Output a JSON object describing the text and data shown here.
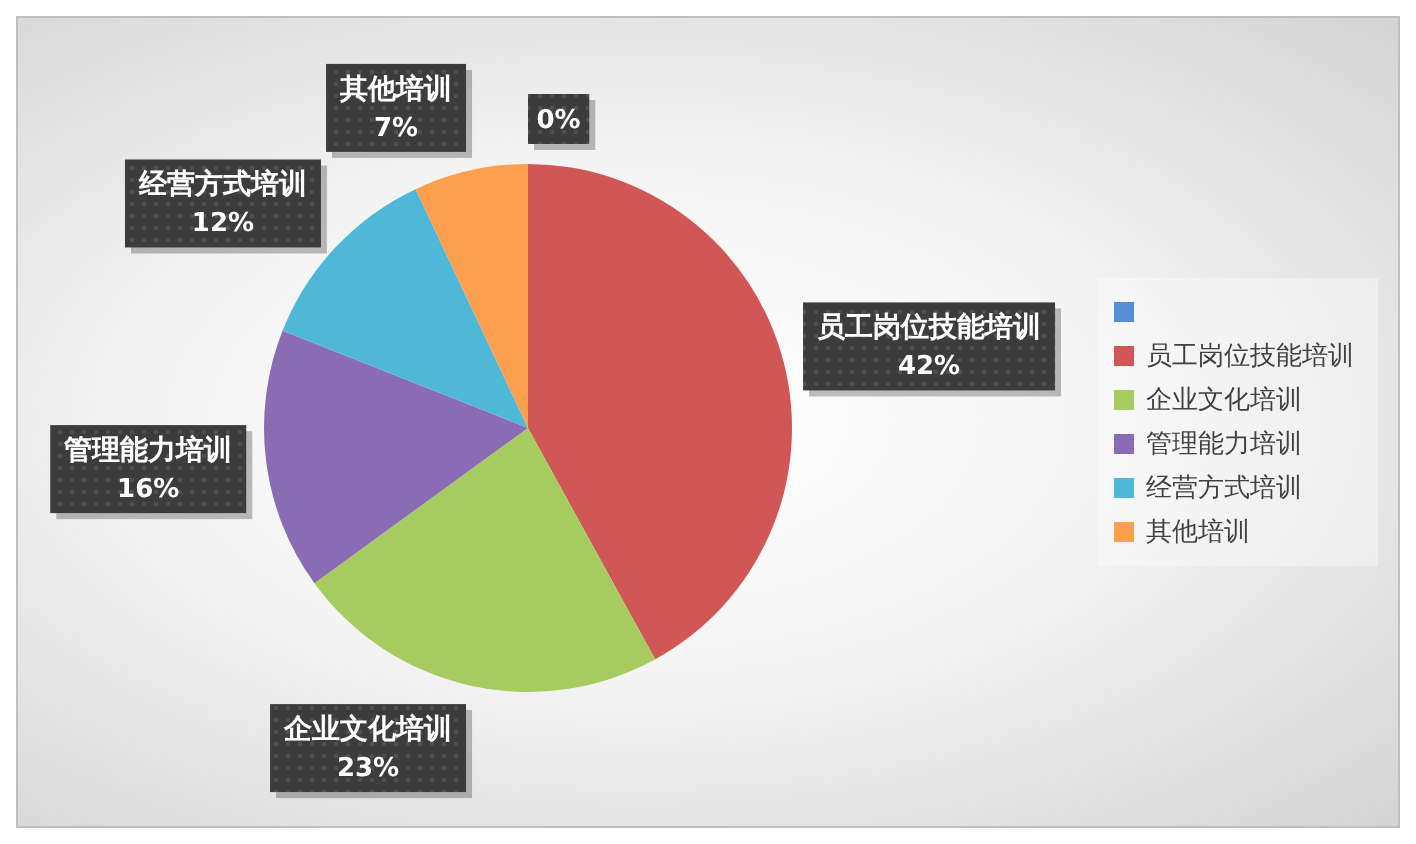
{
  "chart_data": {
    "type": "pie",
    "categories": [
      null,
      "员工岗位技能培训",
      "企业文化培训",
      "管理能力培训",
      "经营方式培训",
      "其他培训"
    ],
    "values": [
      0,
      42,
      23,
      16,
      12,
      7
    ],
    "value_labels": [
      "0%",
      "42%",
      "23%",
      "16%",
      "12%",
      "7%"
    ],
    "colors": [
      "#558ed5",
      "#d05755",
      "#a6cb5f",
      "#8a6cb4",
      "#4fb7d8",
      "#fca050"
    ],
    "legend": "right"
  }
}
